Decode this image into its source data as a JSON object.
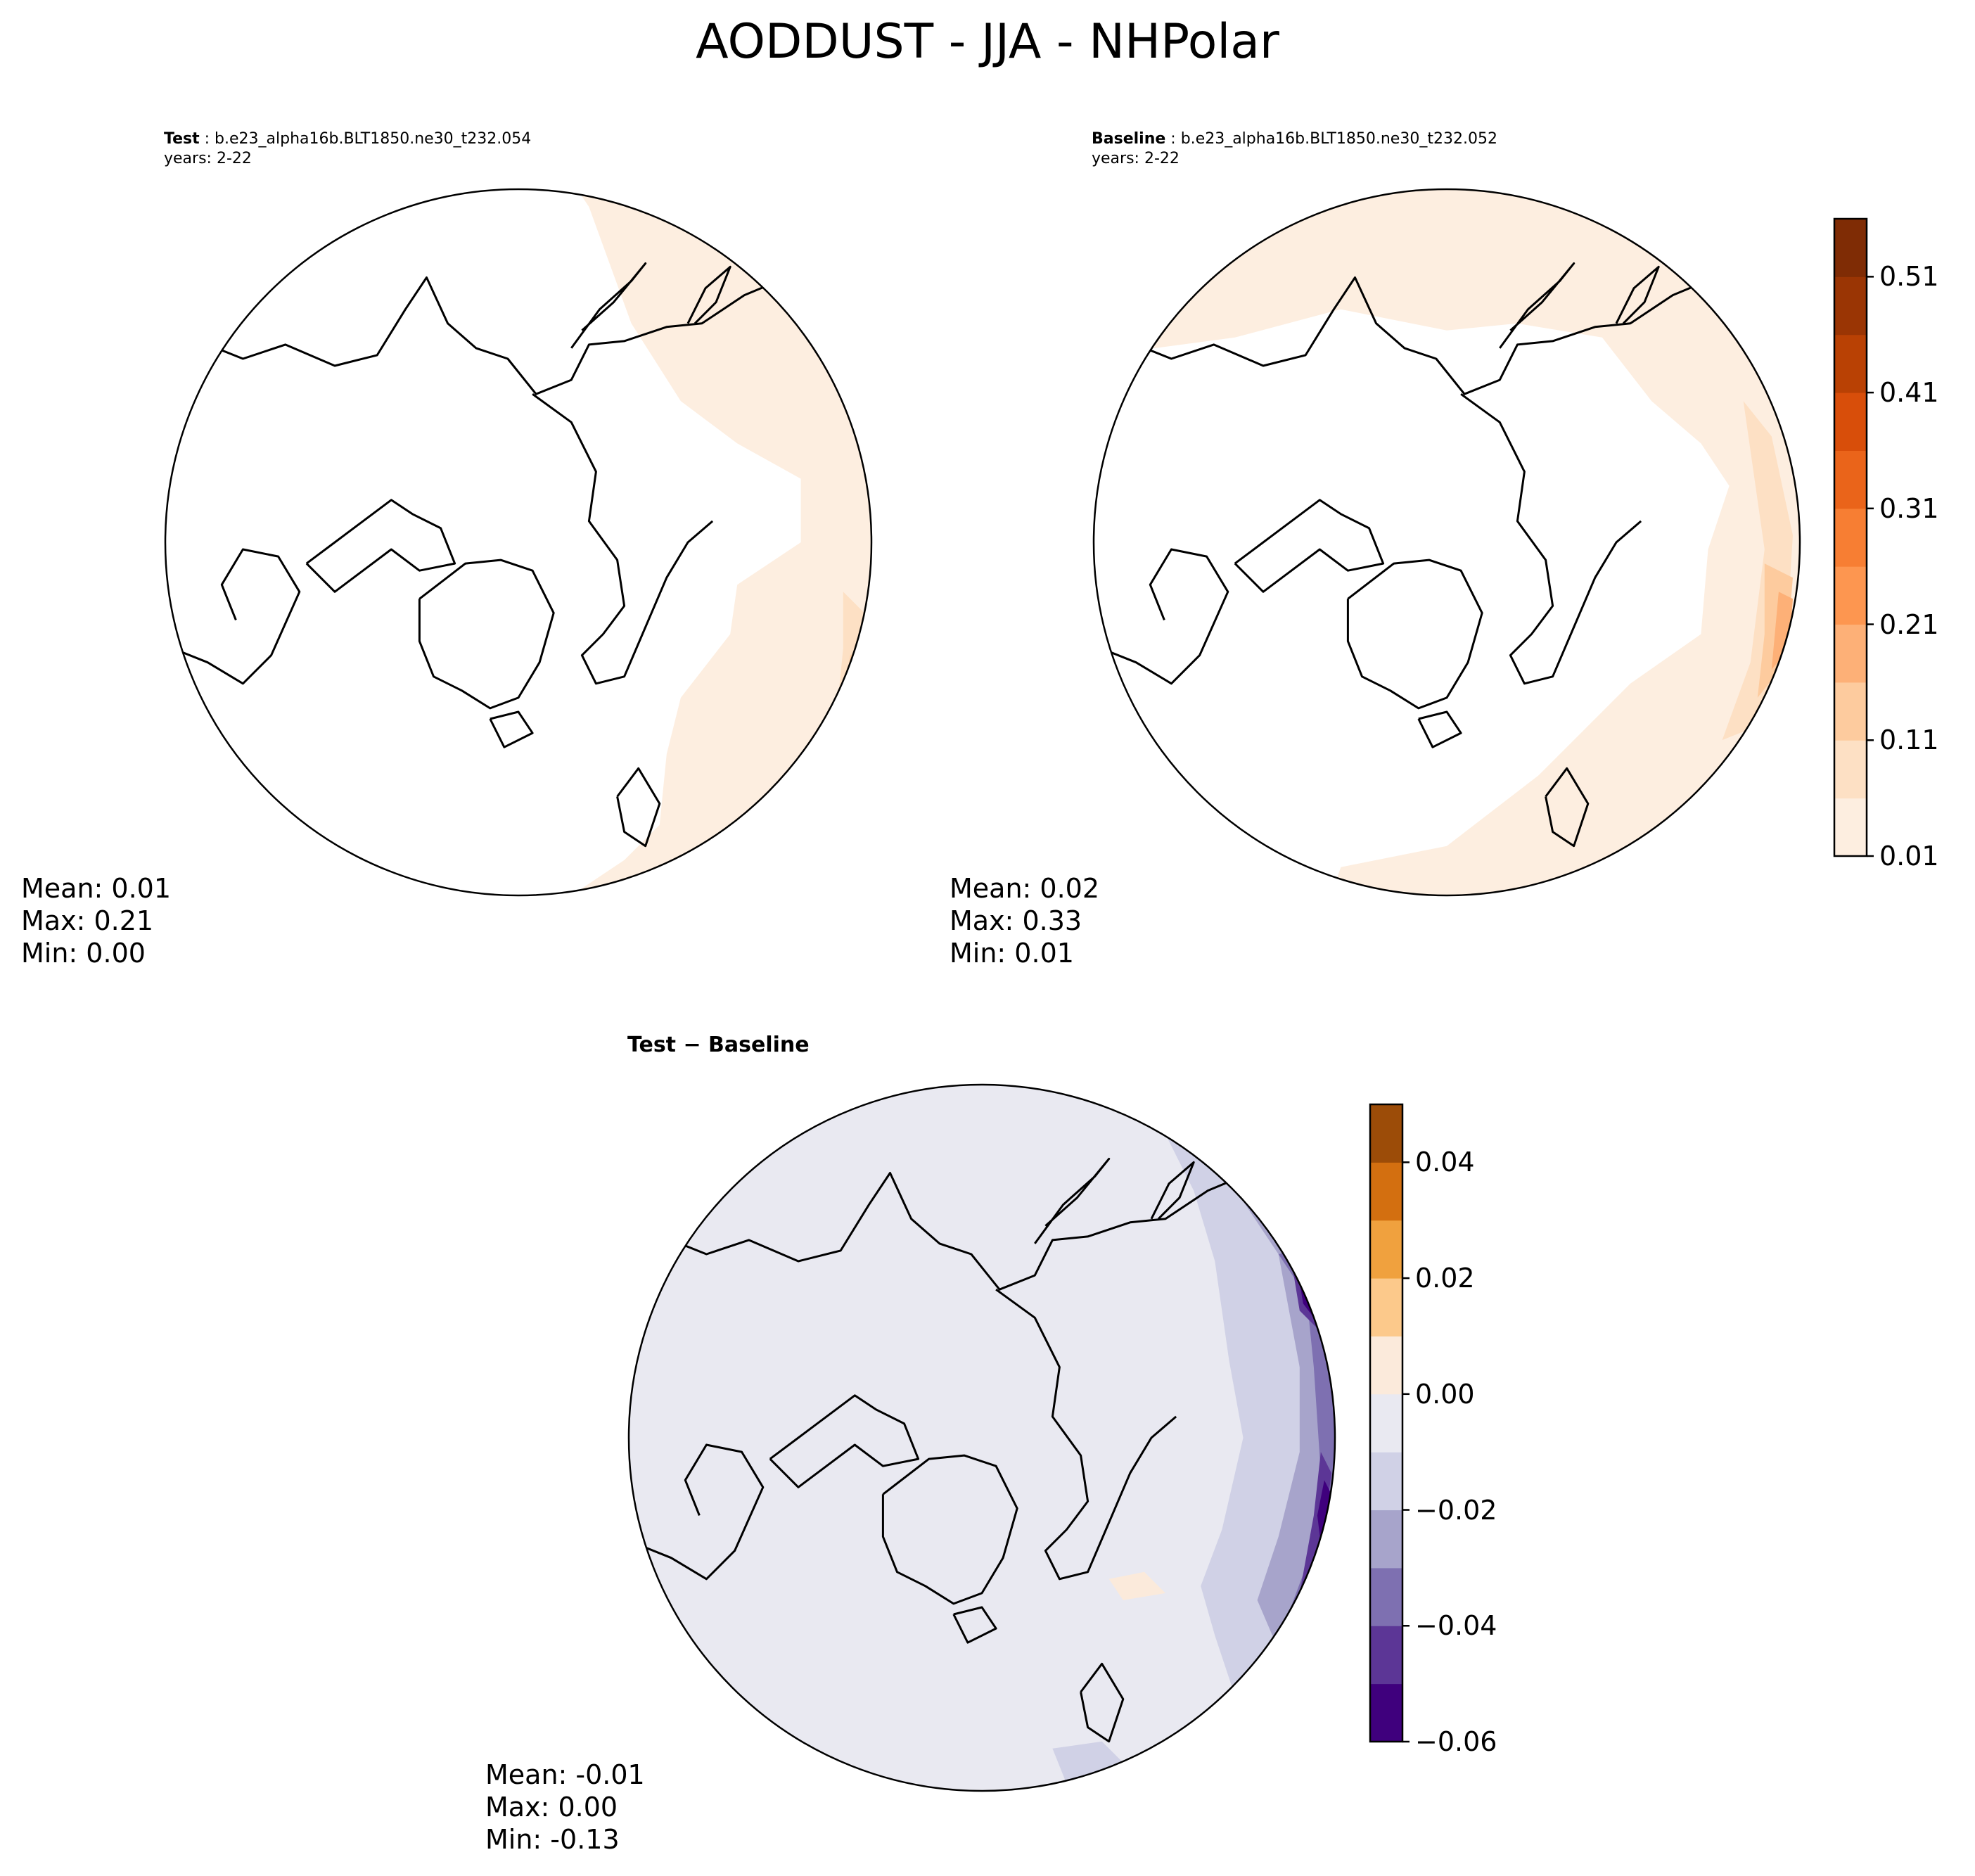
{
  "title": "AODDUST - JJA - NHPolar",
  "colors": {
    "oranges": [
      "#fdeee0",
      "#fde0c4",
      "#fdcb9e",
      "#fdb077",
      "#fd9650",
      "#f77e33",
      "#ea641a",
      "#d84e0a",
      "#b94104",
      "#9a3504",
      "#7f2c05"
    ],
    "diff": [
      "#3f007d",
      "#5c3696",
      "#7e70b1",
      "#a7a4cb",
      "#d0d1e6",
      "#e9e9f1",
      "#fbeadb",
      "#fcc98b",
      "#f0a13e",
      "#d36f10",
      "#9c4c08"
    ],
    "coastline": "#000000",
    "background": "#ffffff"
  },
  "panels": {
    "test": {
      "label_bold": "Test",
      "case": "b.e23_alpha16b.BLT1850.ne30_t232.054",
      "years": "years: 2-22",
      "stats": {
        "mean": "Mean:  0.01",
        "max": "Max:  0.21",
        "min": "Min:  0.00"
      }
    },
    "baseline": {
      "label_bold": "Baseline",
      "case": "b.e23_alpha16b.BLT1850.ne30_t232.052",
      "years": "years: 2-22",
      "stats": {
        "mean": "Mean:  0.02",
        "max": "Max:  0.33",
        "min": "Min:  0.01"
      }
    },
    "diff": {
      "label": "Test − Baseline",
      "stats": {
        "mean": "Mean: -0.01",
        "max": "Max:  0.00",
        "min": "Min: -0.13"
      }
    }
  },
  "colorbars": {
    "main": {
      "ticks": [
        "0.01",
        "0.11",
        "0.21",
        "0.31",
        "0.41",
        "0.51"
      ],
      "range": [
        0.01,
        0.56
      ],
      "levels": 11
    },
    "diff": {
      "ticks": [
        "−0.06",
        "−0.04",
        "−0.02",
        "0.00",
        "0.02",
        "0.04"
      ],
      "range": [
        -0.06,
        0.05
      ],
      "levels": 11
    }
  },
  "chart_data": [
    {
      "type": "heatmap",
      "projection": "north-polar-stereographic",
      "panel": "test",
      "field": "AODDUST",
      "season": "JJA",
      "mean": 0.01,
      "max": 0.21,
      "min": 0.0,
      "colorbar_range": [
        0.01,
        0.56
      ]
    },
    {
      "type": "heatmap",
      "projection": "north-polar-stereographic",
      "panel": "baseline",
      "field": "AODDUST",
      "season": "JJA",
      "mean": 0.02,
      "max": 0.33,
      "min": 0.01,
      "colorbar_range": [
        0.01,
        0.56
      ]
    },
    {
      "type": "heatmap",
      "projection": "north-polar-stereographic",
      "panel": "test-minus-baseline",
      "field": "AODDUST",
      "season": "JJA",
      "mean": -0.01,
      "max": 0.0,
      "min": -0.13,
      "colorbar_range": [
        -0.06,
        0.05
      ]
    }
  ]
}
